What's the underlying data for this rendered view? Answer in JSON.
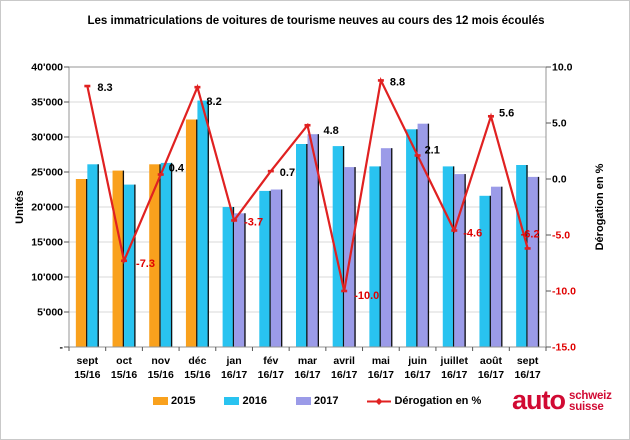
{
  "title": "Les immatriculations de voitures de tourisme neuves au cours des 12 mois écoulés",
  "chart_data": {
    "type": "combo-bar-line",
    "categories": [
      {
        "month": "sept",
        "year": "15/16"
      },
      {
        "month": "oct",
        "year": "15/16"
      },
      {
        "month": "nov",
        "year": "15/16"
      },
      {
        "month": "déc",
        "year": "15/16"
      },
      {
        "month": "jan",
        "year": "16/17"
      },
      {
        "month": "fév",
        "year": "16/17"
      },
      {
        "month": "mar",
        "year": "16/17"
      },
      {
        "month": "avril",
        "year": "16/17"
      },
      {
        "month": "mai",
        "year": "16/17"
      },
      {
        "month": "juin",
        "year": "16/17"
      },
      {
        "month": "juillet",
        "year": "16/17"
      },
      {
        "month": "août",
        "year": "16/17"
      },
      {
        "month": "sept",
        "year": "16/17"
      }
    ],
    "unit_axis": {
      "label": "Unités",
      "min": 0,
      "max": 40000,
      "step": 5000,
      "ticks_top_to_bottom": [
        "40'000",
        "35'000",
        "30'000",
        "25'000",
        "20'000",
        "15'000",
        "10'000",
        "5'000",
        "-"
      ]
    },
    "pct_axis": {
      "label": "Dérogation en %",
      "min": -15.0,
      "max": 10.0,
      "step": 5.0,
      "ticks_top_to_bottom": [
        "10.0",
        "5.0",
        "0.0",
        "-5.0",
        "-10.0",
        "-15.0"
      ],
      "negative_color": "#e00000"
    },
    "series": [
      {
        "name": "2015",
        "color": "#f9a11d",
        "values": [
          24000,
          25200,
          26100,
          32500,
          null,
          null,
          null,
          null,
          null,
          null,
          null,
          null,
          null
        ]
      },
      {
        "name": "2016",
        "color": "#29c3f0",
        "values": [
          26100,
          23200,
          26300,
          35200,
          20000,
          22300,
          29000,
          28700,
          25800,
          31100,
          25800,
          21600,
          26000
        ]
      },
      {
        "name": "2017",
        "color": "#9b9be8",
        "values": [
          null,
          null,
          null,
          null,
          19100,
          22500,
          30400,
          25700,
          28400,
          31900,
          24700,
          22900,
          24300
        ]
      }
    ],
    "line_series": {
      "name": "Dérogation en %",
      "color": "#e02121",
      "values": [
        8.3,
        -7.3,
        0.4,
        8.2,
        -3.7,
        0.7,
        4.8,
        -10.0,
        8.8,
        2.1,
        -4.6,
        5.6,
        -6.2
      ],
      "labels": [
        "8.3",
        "-7.3",
        "0.4",
        "8.2",
        "-3.7",
        "0.7",
        "4.8",
        "-10.0",
        "8.8",
        "2.1",
        "-4.6",
        "5.6",
        "-6.2"
      ]
    },
    "grid": true,
    "legend_position": "bottom"
  },
  "legend": {
    "items": [
      {
        "label": "2015",
        "color": "#f9a11d",
        "type": "bar"
      },
      {
        "label": "2016",
        "color": "#29c3f0",
        "type": "bar"
      },
      {
        "label": "2017",
        "color": "#9b9be8",
        "type": "bar"
      },
      {
        "label": "Dérogation en %",
        "color": "#e02121",
        "type": "line"
      }
    ]
  },
  "logo": {
    "word": "auto",
    "line1": "schweiz",
    "line2": "suisse",
    "color": "#d10a33"
  }
}
